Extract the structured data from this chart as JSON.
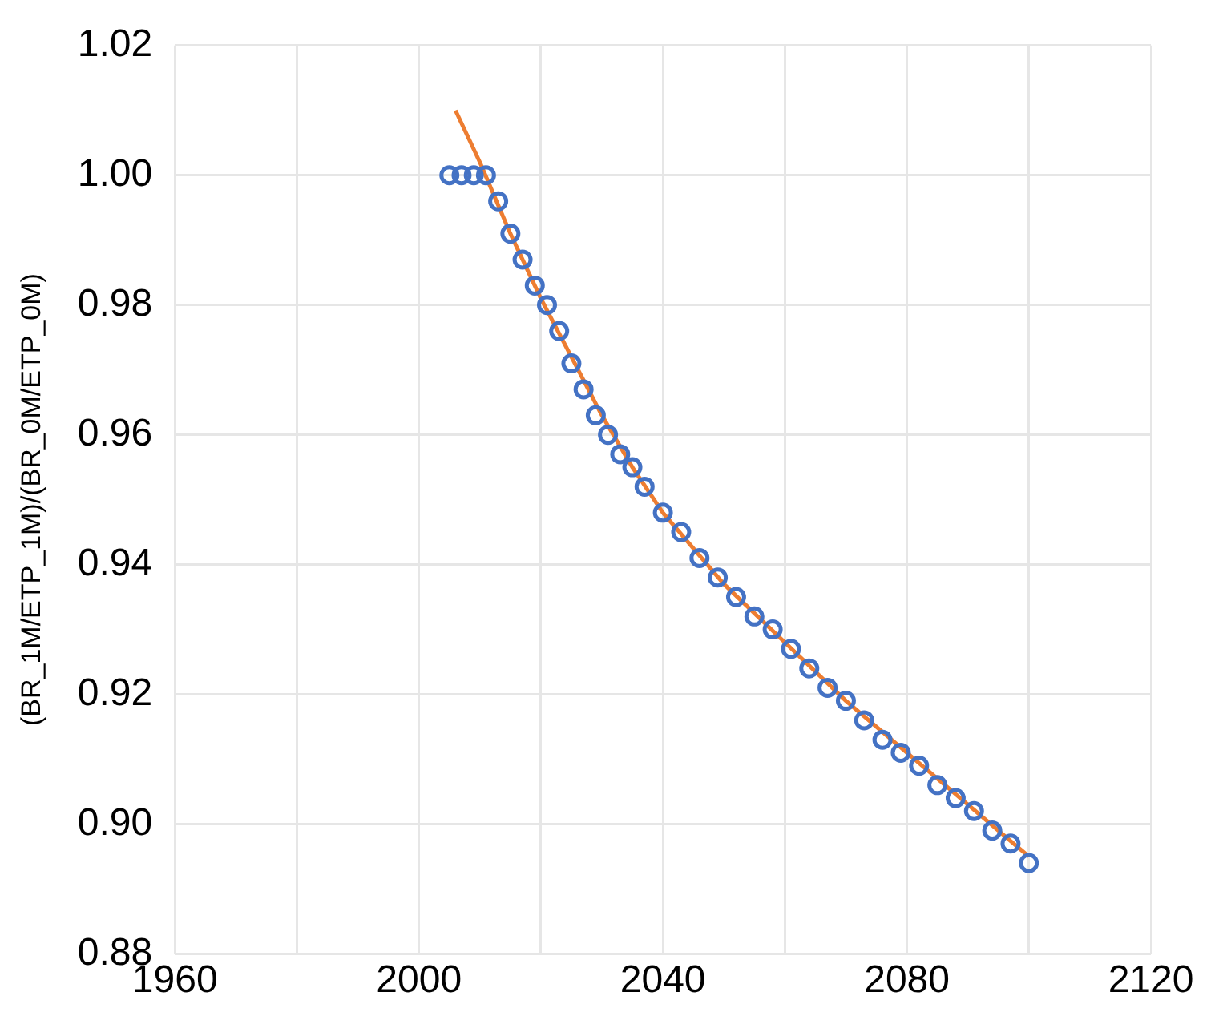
{
  "chart_data": {
    "type": "scatter",
    "ylabel": "(BR_1M/ETP_1M)/(BR_0M/ETP_0M)",
    "xlim": [
      1960,
      2120
    ],
    "xticks": [
      1960,
      {
        "value": 1980,
        "label": null
      },
      2000,
      {
        "value": 2020,
        "label": null
      },
      2040,
      {
        "value": 2060,
        "label": null
      },
      2080,
      {
        "value": 2100,
        "label": null
      },
      2120
    ],
    "ylim": [
      0.88,
      1.02
    ],
    "yticks": [
      {
        "value": 0.88,
        "label": "0.88"
      },
      {
        "value": 0.9,
        "label": "0.90"
      },
      {
        "value": 0.92,
        "label": "0.92"
      },
      {
        "value": 0.94,
        "label": "0.94"
      },
      {
        "value": 0.96,
        "label": "0.96"
      },
      {
        "value": 0.98,
        "label": "0.98"
      },
      {
        "value": 1.0,
        "label": "1.00"
      },
      {
        "value": 1.02,
        "label": "1.02"
      }
    ],
    "grid": true,
    "series": [
      {
        "marker": "circle",
        "color": "#4472c4",
        "x": [
          2005,
          2007,
          2009,
          2011,
          2013,
          2015,
          2017,
          2019,
          2021,
          2023,
          2025,
          2027,
          2029,
          2031,
          2033,
          2035,
          2037,
          2040,
          2043,
          2046,
          2049,
          2052,
          2055,
          2058,
          2061,
          2064,
          2067,
          2070,
          2073,
          2076,
          2079,
          2082,
          2085,
          2088,
          2091,
          2094,
          2097,
          2100
        ],
        "values": [
          1.0,
          1.0,
          1.0,
          1.0,
          0.996,
          0.991,
          0.987,
          0.983,
          0.98,
          0.976,
          0.971,
          0.967,
          0.963,
          0.96,
          0.957,
          0.955,
          0.952,
          0.948,
          0.945,
          0.941,
          0.938,
          0.935,
          0.932,
          0.93,
          0.927,
          0.924,
          0.921,
          0.919,
          0.916,
          0.913,
          0.911,
          0.909,
          0.906,
          0.904,
          0.902,
          0.899,
          0.897,
          0.894
        ]
      },
      {
        "type": "line",
        "marker": "none",
        "color": "#ed7d31",
        "x": [
          2006,
          2010,
          2015,
          2020,
          2025,
          2030,
          2035,
          2040,
          2050,
          2060,
          2070,
          2080,
          2090,
          2100
        ],
        "values": [
          1.01,
          1.002,
          0.991,
          0.981,
          0.972,
          0.963,
          0.955,
          0.948,
          0.937,
          0.928,
          0.919,
          0.911,
          0.903,
          0.895
        ]
      }
    ]
  }
}
